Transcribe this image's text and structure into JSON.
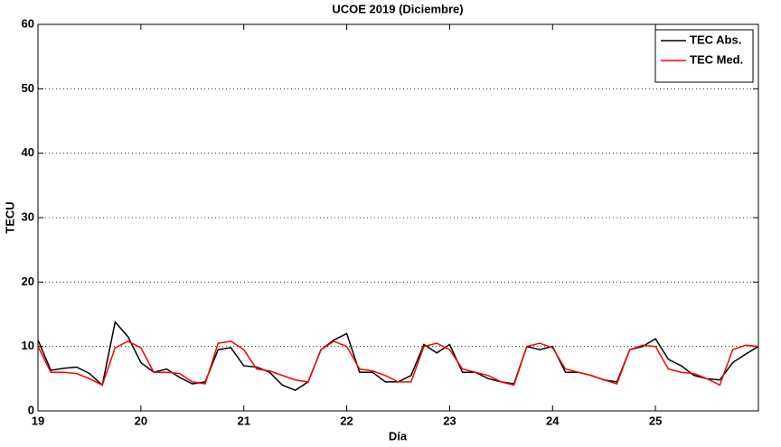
{
  "chart_data": {
    "type": "line",
    "title": "UCOE 2019 (Diciembre)",
    "xlabel": "Día",
    "ylabel": "TECU",
    "x": [
      19,
      19.125,
      19.25,
      19.375,
      19.5,
      19.625,
      19.75,
      19.875,
      20,
      20.125,
      20.25,
      20.375,
      20.5,
      20.625,
      20.75,
      20.875,
      21,
      21.125,
      21.25,
      21.375,
      21.5,
      21.625,
      21.75,
      21.875,
      22,
      22.125,
      22.25,
      22.375,
      22.5,
      22.625,
      22.75,
      22.875,
      23,
      23.125,
      23.25,
      23.375,
      23.5,
      23.625,
      23.75,
      23.875,
      24,
      24.125,
      24.25,
      24.375,
      24.5,
      24.625,
      24.75,
      24.875,
      25,
      25.125,
      25.25,
      25.375,
      25.5,
      25.625,
      25.75,
      25.875,
      26
    ],
    "series": [
      {
        "name": "TEC Abs.",
        "color": "#000000",
        "values": [
          11,
          6.3,
          6.6,
          6.8,
          5.8,
          4.0,
          13.8,
          11.5,
          7.5,
          6.0,
          6.5,
          5.2,
          4.2,
          4.5,
          9.5,
          9.8,
          7.0,
          6.8,
          6.0,
          4.0,
          3.2,
          4.5,
          9.5,
          11,
          12,
          6.0,
          6.0,
          4.5,
          4.5,
          5.5,
          10.3,
          9.0,
          10.3,
          6.0,
          6.0,
          5.0,
          4.5,
          4.2,
          10.0,
          9.5,
          10.0,
          6.0,
          6.0,
          5.5,
          4.8,
          4.5,
          9.5,
          10.0,
          11.2,
          8.0,
          7.0,
          5.5,
          5.0,
          4.8,
          7.5,
          8.8,
          10.0
        ]
      },
      {
        "name": "TEC Med.",
        "color": "#ff0000",
        "values": [
          10.0,
          6.0,
          6.0,
          5.8,
          5.0,
          4.0,
          9.8,
          10.8,
          9.8,
          6.0,
          6.0,
          5.8,
          4.5,
          4.2,
          10.5,
          10.8,
          9.5,
          6.5,
          6.2,
          5.5,
          4.8,
          4.5,
          9.5,
          10.8,
          10.0,
          6.5,
          6.2,
          5.5,
          4.5,
          4.5,
          10.0,
          10.5,
          9.5,
          6.5,
          6.0,
          5.5,
          4.5,
          4.0,
          10.0,
          10.5,
          9.8,
          6.5,
          6.0,
          5.5,
          4.8,
          4.2,
          9.5,
          10.2,
          10.0,
          6.5,
          6.0,
          5.8,
          5.0,
          4.0,
          9.5,
          10.2,
          10.0
        ]
      }
    ],
    "xlim": [
      19,
      26
    ],
    "xticks": [
      19,
      20,
      21,
      22,
      23,
      24,
      25
    ],
    "ylim": [
      0,
      60
    ],
    "yticks": [
      0,
      10,
      20,
      30,
      40,
      50,
      60
    ],
    "ygrid": true,
    "legend": "top-right"
  }
}
